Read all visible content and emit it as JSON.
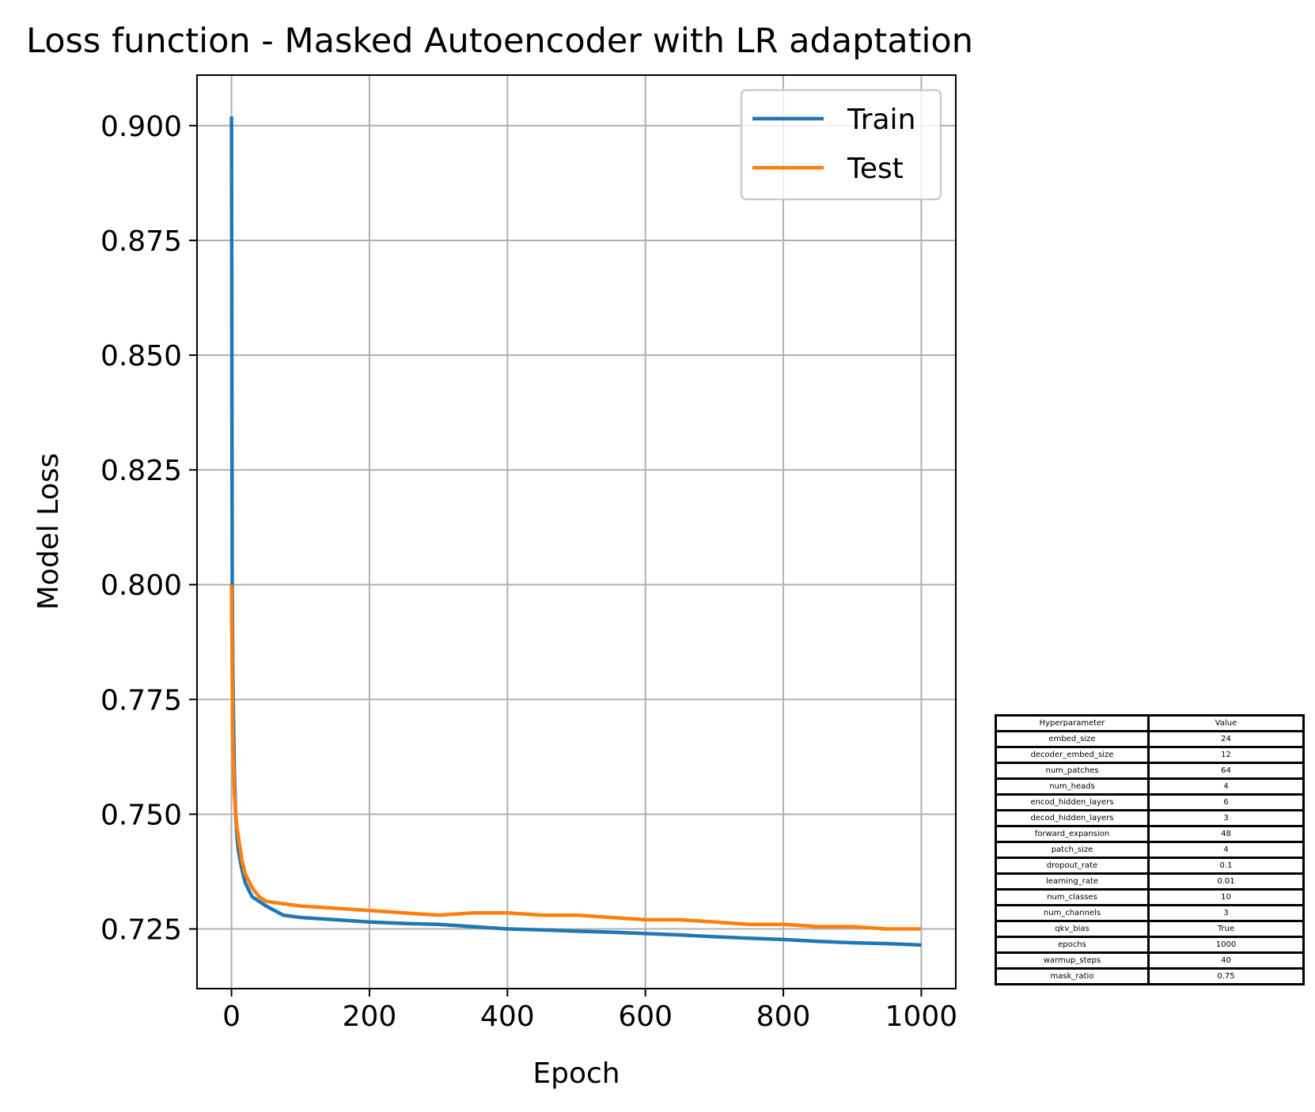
{
  "chart_data": {
    "type": "line",
    "title": "Loss function - Masked Autoencoder with LR adaptation",
    "xlabel": "Epoch",
    "ylabel": "Model Loss",
    "xlim": [
      -50,
      1050
    ],
    "ylim": [
      0.712,
      0.911
    ],
    "xticks": [
      0,
      200,
      400,
      600,
      800,
      1000
    ],
    "xtick_labels": [
      "0",
      "200",
      "400",
      "600",
      "800",
      "1000"
    ],
    "yticks": [
      0.725,
      0.75,
      0.775,
      0.8,
      0.825,
      0.85,
      0.875,
      0.9
    ],
    "ytick_labels": [
      "0.725",
      "0.750",
      "0.775",
      "0.800",
      "0.825",
      "0.850",
      "0.875",
      "0.900"
    ],
    "grid": true,
    "legend_position": "upper right",
    "series": [
      {
        "name": "Train",
        "color": "#1f77b4",
        "x": [
          0,
          1,
          2,
          4,
          6,
          8,
          10,
          15,
          20,
          30,
          40,
          50,
          75,
          100,
          150,
          200,
          250,
          300,
          350,
          400,
          450,
          500,
          550,
          600,
          650,
          700,
          750,
          800,
          850,
          900,
          950,
          1000
        ],
        "y": [
          0.902,
          0.8,
          0.78,
          0.76,
          0.75,
          0.745,
          0.742,
          0.738,
          0.735,
          0.732,
          0.731,
          0.73,
          0.728,
          0.7275,
          0.727,
          0.7265,
          0.7262,
          0.726,
          0.7255,
          0.725,
          0.7248,
          0.7245,
          0.7243,
          0.724,
          0.7237,
          0.7233,
          0.723,
          0.7227,
          0.7223,
          0.722,
          0.7218,
          0.7215
        ]
      },
      {
        "name": "Test",
        "color": "#ff7f0e",
        "x": [
          0,
          1,
          2,
          4,
          6,
          8,
          10,
          15,
          20,
          30,
          40,
          50,
          75,
          100,
          150,
          200,
          250,
          300,
          350,
          400,
          450,
          500,
          550,
          600,
          650,
          700,
          750,
          800,
          850,
          900,
          950,
          1000
        ],
        "y": [
          0.8,
          0.78,
          0.765,
          0.755,
          0.75,
          0.747,
          0.745,
          0.74,
          0.737,
          0.734,
          0.732,
          0.731,
          0.7305,
          0.73,
          0.7295,
          0.729,
          0.7285,
          0.728,
          0.7285,
          0.7285,
          0.728,
          0.728,
          0.7275,
          0.727,
          0.727,
          0.7265,
          0.726,
          0.726,
          0.7255,
          0.7255,
          0.725,
          0.725
        ]
      }
    ]
  },
  "hyperparameters": {
    "header": [
      "Hyperparameter",
      "Value"
    ],
    "rows": [
      [
        "embed_size",
        "24"
      ],
      [
        "decoder_embed_size",
        "12"
      ],
      [
        "num_patches",
        "64"
      ],
      [
        "num_heads",
        "4"
      ],
      [
        "encod_hidden_layers",
        "6"
      ],
      [
        "decod_hidden_layers",
        "3"
      ],
      [
        "forward_expansion",
        "48"
      ],
      [
        "patch_size",
        "4"
      ],
      [
        "dropout_rate",
        "0.1"
      ],
      [
        "learning_rate",
        "0.01"
      ],
      [
        "num_classes",
        "10"
      ],
      [
        "num_channels",
        "3"
      ],
      [
        "qkv_bias",
        "True"
      ],
      [
        "epochs",
        "1000"
      ],
      [
        "warmup_steps",
        "40"
      ],
      [
        "mask_ratio",
        "0.75"
      ]
    ]
  }
}
